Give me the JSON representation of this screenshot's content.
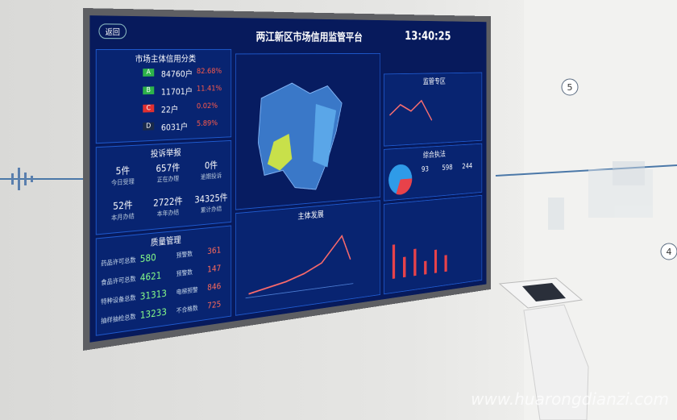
{
  "header": {
    "back": "返回",
    "title": "两江新区市场信用监管平台",
    "time": "13:40:25"
  },
  "credit": {
    "title": "市场主体信用分类",
    "rows": [
      {
        "grade": "A",
        "count": "84760户",
        "pct": "82.68%"
      },
      {
        "grade": "B",
        "count": "11701户",
        "pct": "11.41%"
      },
      {
        "grade": "C",
        "count": "22户",
        "pct": "0.02%"
      },
      {
        "grade": "D",
        "count": "6031户",
        "pct": "5.89%"
      }
    ]
  },
  "complaints": {
    "title": "投诉举报",
    "items": [
      {
        "value": "5件",
        "label": "今日受理"
      },
      {
        "value": "657件",
        "label": "正在办理"
      },
      {
        "value": "0件",
        "label": "逾期投诉"
      },
      {
        "value": "52件",
        "label": "本月办结"
      },
      {
        "value": "2722件",
        "label": "本年办结"
      },
      {
        "value": "34325件",
        "label": "累计办结"
      }
    ]
  },
  "quality": {
    "title": "质量管理",
    "items": [
      {
        "label": "药品许可总数",
        "value": "580",
        "warn_label": "预警数",
        "warn": "361"
      },
      {
        "label": "食品许可总数",
        "value": "4621",
        "warn_label": "预警数",
        "warn": "147"
      },
      {
        "label": "特种设备总数",
        "value": "31313",
        "warn_label": "电梯预警",
        "warn": "846"
      },
      {
        "label": "抽样抽检总数",
        "value": "13233",
        "warn_label": "不合格数",
        "warn": "725"
      }
    ]
  },
  "development": {
    "title": "主体发展"
  },
  "supervision": {
    "title": "监管专区"
  },
  "enforcement": {
    "title": "综合执法",
    "values": [
      "93",
      "598",
      "244"
    ]
  },
  "watermark": "www.huarongdianzi.com",
  "wall": {
    "steps": [
      "5",
      "4"
    ]
  }
}
